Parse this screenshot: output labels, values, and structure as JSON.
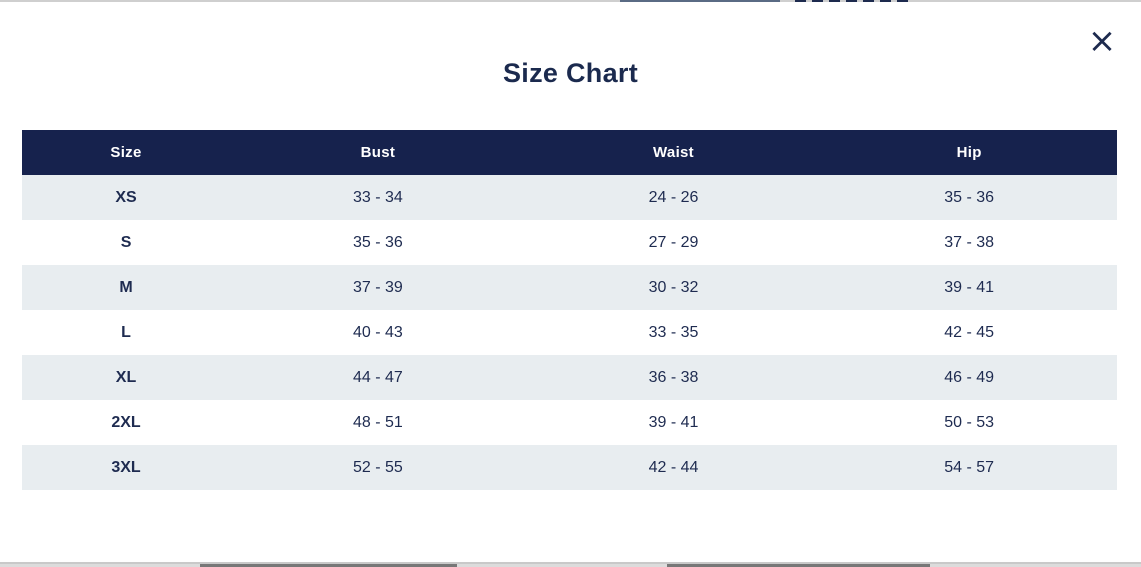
{
  "modal": {
    "title": "Size Chart"
  },
  "icons": {
    "close": "×"
  },
  "size_chart": {
    "headers": [
      "Size",
      "Bust",
      "Waist",
      "Hip"
    ],
    "rows": [
      {
        "size": "XS",
        "bust": "33 - 34",
        "waist": "24 - 26",
        "hip": "35 - 36"
      },
      {
        "size": "S",
        "bust": "35 - 36",
        "waist": "27 - 29",
        "hip": "37 - 38"
      },
      {
        "size": "M",
        "bust": "37 - 39",
        "waist": "30 - 32",
        "hip": "39 - 41"
      },
      {
        "size": "L",
        "bust": "40 - 43",
        "waist": "33 - 35",
        "hip": "42 - 45"
      },
      {
        "size": "XL",
        "bust": "44 - 47",
        "waist": "36 - 38",
        "hip": "46 - 49"
      },
      {
        "size": "2XL",
        "bust": "48 - 51",
        "waist": "39 - 41",
        "hip": "50 - 53"
      },
      {
        "size": "3XL",
        "bust": "52 - 55",
        "waist": "42 - 44",
        "hip": "54 - 57"
      }
    ]
  },
  "colors": {
    "header_bg": "#16224d",
    "header_text": "#ffffff",
    "row_alt_bg": "#e8edf0",
    "row_bg": "#ffffff",
    "text": "#1e2b50",
    "title_text": "#1b2a4e"
  }
}
